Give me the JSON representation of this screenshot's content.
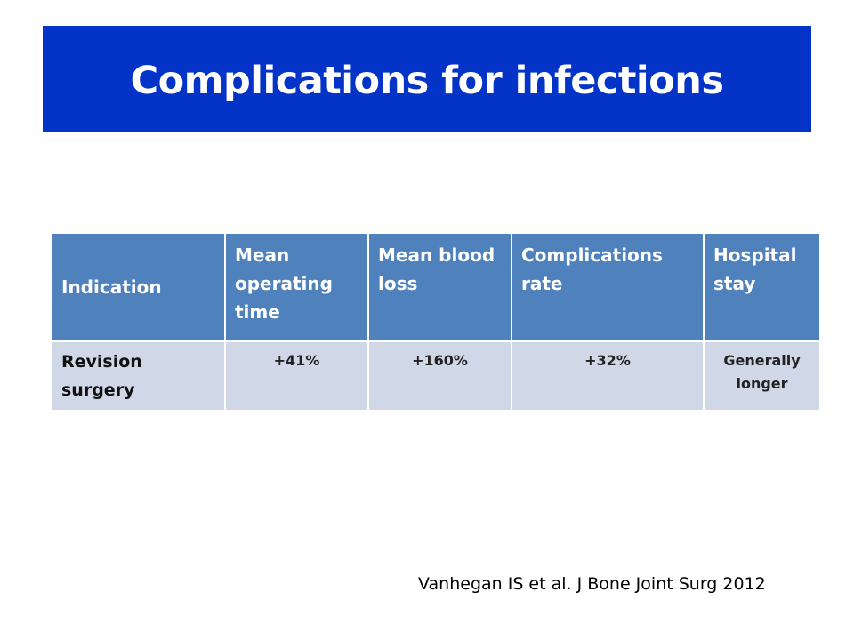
{
  "slide": {
    "title": "Complications for infections",
    "citation": "Vanhegan IS et al. J Bone Joint Surg 2012"
  },
  "table": {
    "headers": [
      "Indication",
      "Mean operating time",
      "Mean blood loss",
      "Complications rate",
      "Hospital stay"
    ],
    "rows": [
      {
        "label": "Revision surgery",
        "values": [
          "+41%",
          "+160%",
          "+32%",
          "Generally longer"
        ]
      }
    ]
  },
  "colors": {
    "title_banner": "#0433c8",
    "header_fill": "#4f81bd",
    "row_fill": "#d0d8e8"
  }
}
